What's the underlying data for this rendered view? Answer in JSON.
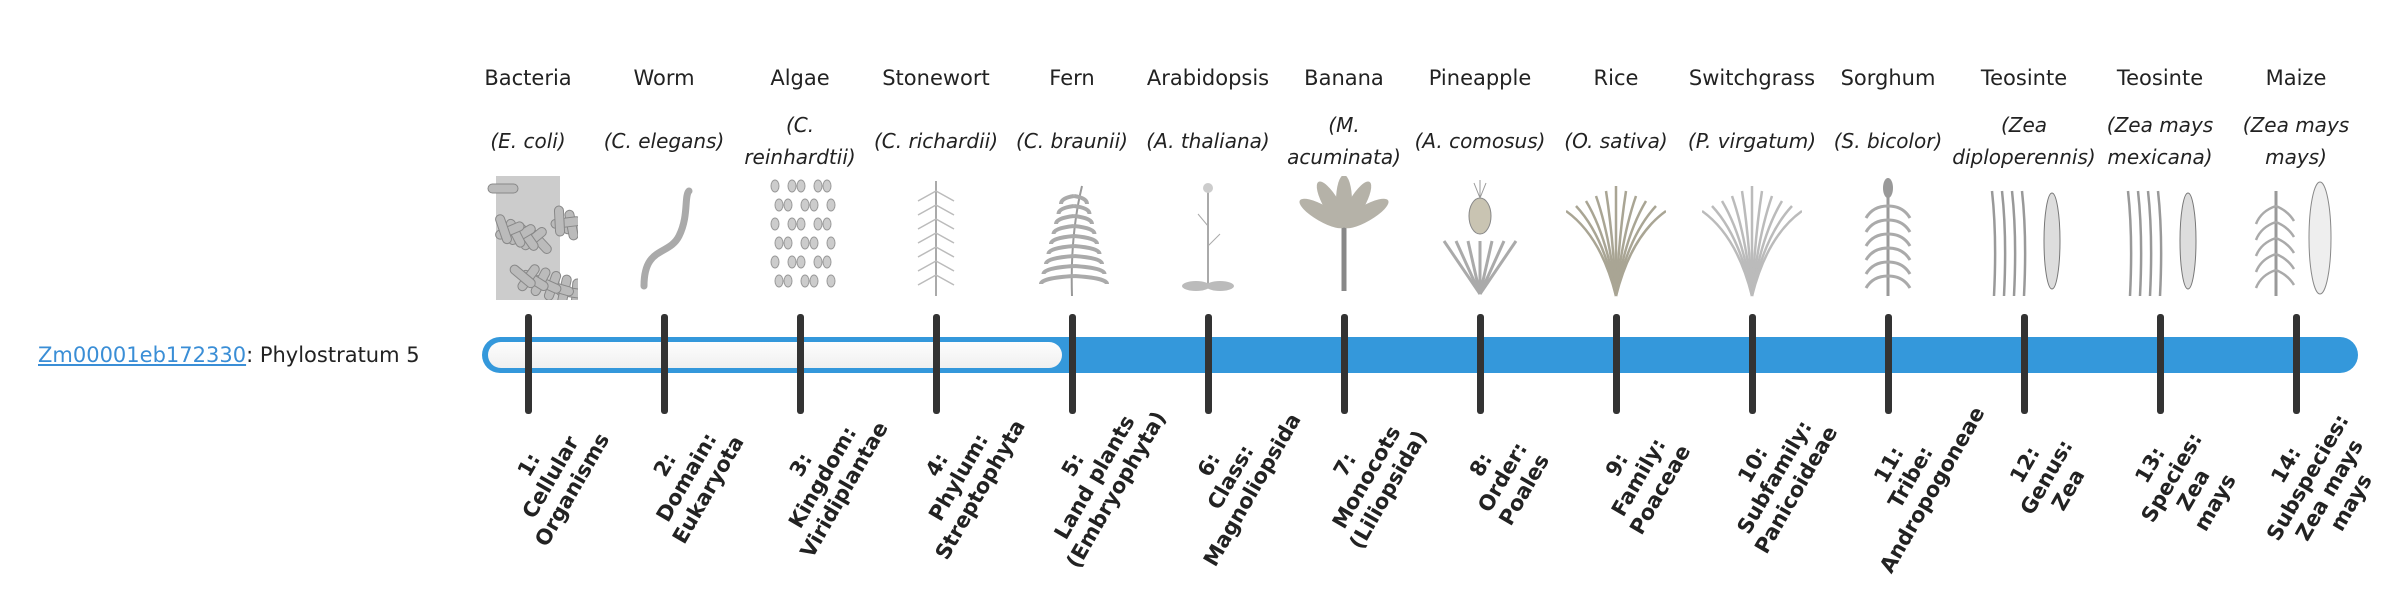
{
  "gene": {
    "id": "Zm00001eb172330",
    "suffix": ": Phylostratum 5",
    "phylostratum": 5
  },
  "colors": {
    "bar": "#3498db",
    "link": "#3a8ed6",
    "tick": "#333333"
  },
  "organisms": [
    {
      "name": "Bacteria",
      "species": "(E. coli)",
      "icon": "bacteria-icon"
    },
    {
      "name": "Worm",
      "species": "(C. elegans)",
      "icon": "worm-icon"
    },
    {
      "name": "Algae",
      "species": "(C. reinhardtii)",
      "icon": "algae-icon"
    },
    {
      "name": "Stonewort",
      "species": "(C. richardii)",
      "icon": "stonewort-icon"
    },
    {
      "name": "Fern",
      "species": "(C. braunii)",
      "icon": "fern-icon"
    },
    {
      "name": "Arabidopsis",
      "species": "(A. thaliana)",
      "icon": "arabidopsis-icon"
    },
    {
      "name": "Banana",
      "species": "(M. acuminata)",
      "icon": "banana-icon"
    },
    {
      "name": "Pineapple",
      "species": "(A. comosus)",
      "icon": "pineapple-icon"
    },
    {
      "name": "Rice",
      "species": "(O. sativa)",
      "icon": "rice-icon"
    },
    {
      "name": "Switchgrass",
      "species": "(P. virgatum)",
      "icon": "switchgrass-icon"
    },
    {
      "name": "Sorghum",
      "species": "(S. bicolor)",
      "icon": "sorghum-icon"
    },
    {
      "name": "Teosinte",
      "species": "(Zea diploperennis)",
      "icon": "teosinte-icon"
    },
    {
      "name": "Teosinte",
      "species": "(Zea mays mexicana)",
      "icon": "teosinte-icon"
    },
    {
      "name": "Maize",
      "species": "(Zea mays mays)",
      "icon": "maize-icon"
    }
  ],
  "strata": [
    {
      "lines": [
        "1:",
        "Cellular",
        "Organisms"
      ]
    },
    {
      "lines": [
        "2:",
        "Domain:",
        "Eukaryota"
      ]
    },
    {
      "lines": [
        "3:",
        "Kingdom:",
        "Viridiplantae"
      ]
    },
    {
      "lines": [
        "4:",
        "Phylum:",
        "Streptophyta"
      ]
    },
    {
      "lines": [
        "5:",
        "Land plants",
        "(Embryophyta)"
      ]
    },
    {
      "lines": [
        "6:",
        "Class:",
        "Magnoliopsida"
      ]
    },
    {
      "lines": [
        "7:",
        "Monocots",
        "(Liliopsida)"
      ]
    },
    {
      "lines": [
        "8:",
        "Order:",
        "Poales"
      ]
    },
    {
      "lines": [
        "9:",
        "Family:",
        "Poaceae"
      ]
    },
    {
      "lines": [
        "10:",
        "Subfamily:",
        "Panicoideae"
      ]
    },
    {
      "lines": [
        "11:",
        "Tribe:",
        "Andropogoneae"
      ]
    },
    {
      "lines": [
        "12:",
        "Genus:",
        "Zea"
      ]
    },
    {
      "lines": [
        "13:",
        "Species:",
        "Zea",
        "mays"
      ]
    },
    {
      "lines": [
        "14:",
        "Subspecies:",
        "Zea mays",
        "mays"
      ]
    }
  ]
}
